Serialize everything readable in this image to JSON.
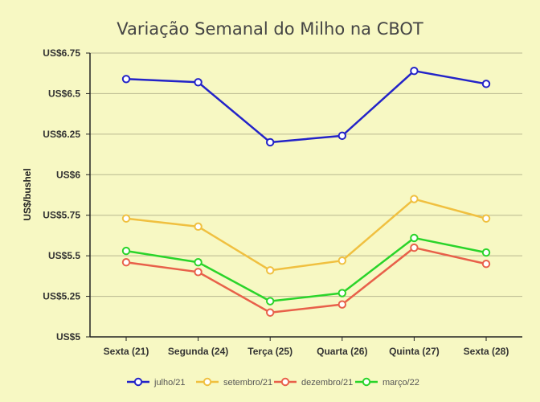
{
  "chart_data": {
    "type": "line",
    "title": "Variação Semanal do Milho na CBOT",
    "xlabel": "",
    "ylabel": "US$/bushel",
    "categories": [
      "Sexta (21)",
      "Segunda (24)",
      "Terça (25)",
      "Quarta (26)",
      "Quinta (27)",
      "Sexta (28)"
    ],
    "ylim": [
      5,
      6.75
    ],
    "yticks": [
      5,
      5.25,
      5.5,
      5.75,
      6,
      6.25,
      6.5,
      6.75
    ],
    "ytick_labels": [
      "US$5",
      "US$5.25",
      "US$5.5",
      "US$5.75",
      "US$6",
      "US$6.25",
      "US$6.5",
      "US$6.75"
    ],
    "grid": true,
    "legend_position": "bottom",
    "series": [
      {
        "name": "julho/21",
        "color": "#2323c8",
        "values": [
          6.59,
          6.57,
          6.2,
          6.24,
          6.64,
          6.56
        ]
      },
      {
        "name": "setembro/21",
        "color": "#f0c040",
        "values": [
          5.73,
          5.68,
          5.41,
          5.47,
          5.85,
          5.73
        ]
      },
      {
        "name": "dezembro/21",
        "color": "#e8604a",
        "values": [
          5.46,
          5.4,
          5.15,
          5.2,
          5.55,
          5.45
        ]
      },
      {
        "name": "março/22",
        "color": "#2ad42a",
        "values": [
          5.53,
          5.46,
          5.22,
          5.27,
          5.61,
          5.52
        ]
      }
    ]
  }
}
